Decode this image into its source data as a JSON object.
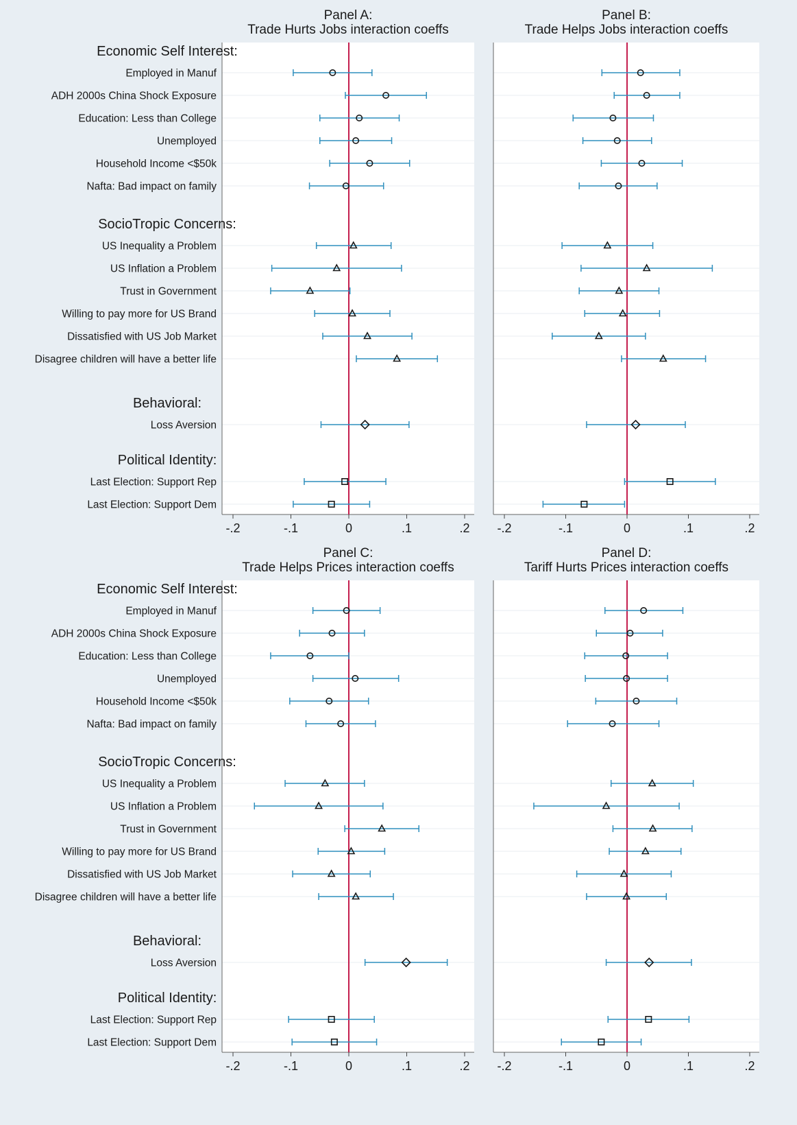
{
  "chart_data": [
    {
      "type": "scatter",
      "subtype": "coefficient-plot-with-confidence-intervals",
      "title_line1": "Panel A:",
      "title_line2": "Trade Hurts Jobs interaction coeffs",
      "xlim": [
        -0.2,
        0.2
      ],
      "xticks": [
        -0.2,
        -0.1,
        0,
        0.1,
        0.2
      ],
      "xtick_labels": [
        "-.2",
        "-.1",
        "0",
        ".1",
        ".2"
      ],
      "reference_line": 0,
      "grid": true,
      "points": [
        {
          "group": "Economic Self Interest:",
          "label": "Employed in Manuf",
          "coef": -0.028,
          "lo": -0.096,
          "hi": 0.04,
          "marker": "circle"
        },
        {
          "group": "Economic Self Interest:",
          "label": "ADH 2000s China Shock Exposure",
          "coef": 0.064,
          "lo": -0.006,
          "hi": 0.134,
          "marker": "circle"
        },
        {
          "group": "Economic Self Interest:",
          "label": "Education: Less than College",
          "coef": 0.018,
          "lo": -0.05,
          "hi": 0.087,
          "marker": "circle"
        },
        {
          "group": "Economic Self Interest:",
          "label": "Unemployed",
          "coef": 0.012,
          "lo": -0.05,
          "hi": 0.074,
          "marker": "circle"
        },
        {
          "group": "Economic Self Interest:",
          "label": "Household Income <$50k",
          "coef": 0.036,
          "lo": -0.033,
          "hi": 0.105,
          "marker": "circle"
        },
        {
          "group": "Economic Self Interest:",
          "label": "Nafta: Bad impact on family",
          "coef": -0.005,
          "lo": -0.068,
          "hi": 0.06,
          "marker": "circle"
        },
        {
          "group": "SocioTropic Concerns:",
          "label": "US Inequality a Problem",
          "coef": 0.008,
          "lo": -0.056,
          "hi": 0.073,
          "marker": "triangle"
        },
        {
          "group": "SocioTropic Concerns:",
          "label": "US Inflation a Problem",
          "coef": -0.021,
          "lo": -0.133,
          "hi": 0.091,
          "marker": "triangle"
        },
        {
          "group": "SocioTropic Concerns:",
          "label": "Trust in Government",
          "coef": -0.067,
          "lo": -0.135,
          "hi": 0.002,
          "marker": "triangle"
        },
        {
          "group": "SocioTropic Concerns:",
          "label": "Willing to pay more for US Brand",
          "coef": 0.006,
          "lo": -0.059,
          "hi": 0.071,
          "marker": "triangle"
        },
        {
          "group": "SocioTropic Concerns:",
          "label": "Dissatisfied with US Job Market",
          "coef": 0.032,
          "lo": -0.045,
          "hi": 0.109,
          "marker": "triangle"
        },
        {
          "group": "SocioTropic Concerns:",
          "label": "Disagree children will have a better life",
          "coef": 0.083,
          "lo": 0.013,
          "hi": 0.153,
          "marker": "triangle"
        },
        {
          "group": "Behavioral:",
          "label": "Loss Aversion",
          "coef": 0.028,
          "lo": -0.048,
          "hi": 0.104,
          "marker": "diamond"
        },
        {
          "group": "Political Identity:",
          "label": "Last Election: Support Rep",
          "coef": -0.007,
          "lo": -0.077,
          "hi": 0.064,
          "marker": "square"
        },
        {
          "group": "Political Identity:",
          "label": "Last Election: Support Dem",
          "coef": -0.03,
          "lo": -0.096,
          "hi": 0.036,
          "marker": "square"
        }
      ]
    },
    {
      "type": "scatter",
      "subtype": "coefficient-plot-with-confidence-intervals",
      "title_line1": "Panel B:",
      "title_line2": "Trade Helps Jobs interaction coeffs",
      "xlim": [
        -0.2,
        0.2
      ],
      "xticks": [
        -0.2,
        -0.1,
        0,
        0.1,
        0.2
      ],
      "xtick_labels": [
        "-.2",
        "-.1",
        "0",
        ".1",
        ".2"
      ],
      "reference_line": 0,
      "grid": true,
      "points": [
        {
          "group": "Economic Self Interest:",
          "label": "Employed in Manuf",
          "coef": 0.022,
          "lo": -0.041,
          "hi": 0.086,
          "marker": "circle"
        },
        {
          "group": "Economic Self Interest:",
          "label": "ADH 2000s China Shock Exposure",
          "coef": 0.032,
          "lo": -0.021,
          "hi": 0.086,
          "marker": "circle"
        },
        {
          "group": "Economic Self Interest:",
          "label": "Education: Less than College",
          "coef": -0.023,
          "lo": -0.088,
          "hi": 0.043,
          "marker": "circle"
        },
        {
          "group": "Economic Self Interest:",
          "label": "Unemployed",
          "coef": -0.016,
          "lo": -0.072,
          "hi": 0.04,
          "marker": "circle"
        },
        {
          "group": "Economic Self Interest:",
          "label": "Household Income <$50k",
          "coef": 0.024,
          "lo": -0.042,
          "hi": 0.09,
          "marker": "circle"
        },
        {
          "group": "Economic Self Interest:",
          "label": "Nafta: Bad impact on family",
          "coef": -0.014,
          "lo": -0.078,
          "hi": 0.049,
          "marker": "circle"
        },
        {
          "group": "SocioTropic Concerns:",
          "label": "US Inequality a Problem",
          "coef": -0.032,
          "lo": -0.106,
          "hi": 0.042,
          "marker": "triangle"
        },
        {
          "group": "SocioTropic Concerns:",
          "label": "US Inflation a Problem",
          "coef": 0.032,
          "lo": -0.075,
          "hi": 0.139,
          "marker": "triangle"
        },
        {
          "group": "SocioTropic Concerns:",
          "label": "Trust in Government",
          "coef": -0.013,
          "lo": -0.078,
          "hi": 0.052,
          "marker": "triangle"
        },
        {
          "group": "SocioTropic Concerns:",
          "label": "Willing to pay more for US Brand",
          "coef": -0.007,
          "lo": -0.069,
          "hi": 0.053,
          "marker": "triangle"
        },
        {
          "group": "SocioTropic Concerns:",
          "label": "Dissatisfied with US Job Market",
          "coef": -0.046,
          "lo": -0.122,
          "hi": 0.03,
          "marker": "triangle"
        },
        {
          "group": "SocioTropic Concerns:",
          "label": "Disagree children will have a better life",
          "coef": 0.059,
          "lo": -0.009,
          "hi": 0.128,
          "marker": "triangle"
        },
        {
          "group": "Behavioral:",
          "label": "Loss Aversion",
          "coef": 0.014,
          "lo": -0.066,
          "hi": 0.095,
          "marker": "diamond"
        },
        {
          "group": "Political Identity:",
          "label": "Last Election: Support Rep",
          "coef": 0.07,
          "lo": -0.004,
          "hi": 0.144,
          "marker": "square"
        },
        {
          "group": "Political Identity:",
          "label": "Last Election: Support Dem",
          "coef": -0.07,
          "lo": -0.137,
          "hi": -0.004,
          "marker": "square"
        }
      ]
    },
    {
      "type": "scatter",
      "subtype": "coefficient-plot-with-confidence-intervals",
      "title_line1": "Panel C:",
      "title_line2": "Trade Helps Prices interaction coeffs",
      "xlim": [
        -0.2,
        0.2
      ],
      "xticks": [
        -0.2,
        -0.1,
        0,
        0.1,
        0.2
      ],
      "xtick_labels": [
        "-.2",
        "-.1",
        "0",
        ".1",
        ".2"
      ],
      "reference_line": 0,
      "grid": true,
      "points": [
        {
          "group": "Economic Self Interest:",
          "label": "Employed in Manuf",
          "coef": -0.004,
          "lo": -0.062,
          "hi": 0.054,
          "marker": "circle"
        },
        {
          "group": "Economic Self Interest:",
          "label": "ADH 2000s China Shock Exposure",
          "coef": -0.029,
          "lo": -0.085,
          "hi": 0.027,
          "marker": "circle"
        },
        {
          "group": "Economic Self Interest:",
          "label": "Education: Less than College",
          "coef": -0.067,
          "lo": -0.135,
          "hi": 0.0,
          "marker": "circle"
        },
        {
          "group": "Economic Self Interest:",
          "label": "Unemployed",
          "coef": 0.011,
          "lo": -0.062,
          "hi": 0.086,
          "marker": "circle"
        },
        {
          "group": "Economic Self Interest:",
          "label": "Household Income <$50k",
          "coef": -0.034,
          "lo": -0.102,
          "hi": 0.034,
          "marker": "circle"
        },
        {
          "group": "Economic Self Interest:",
          "label": "Nafta: Bad impact on family",
          "coef": -0.014,
          "lo": -0.074,
          "hi": 0.046,
          "marker": "circle"
        },
        {
          "group": "SocioTropic Concerns:",
          "label": "US Inequality a Problem",
          "coef": -0.041,
          "lo": -0.11,
          "hi": 0.027,
          "marker": "triangle"
        },
        {
          "group": "SocioTropic Concerns:",
          "label": "US Inflation a Problem",
          "coef": -0.052,
          "lo": -0.163,
          "hi": 0.059,
          "marker": "triangle"
        },
        {
          "group": "SocioTropic Concerns:",
          "label": "Trust in Government",
          "coef": 0.057,
          "lo": -0.007,
          "hi": 0.121,
          "marker": "triangle"
        },
        {
          "group": "SocioTropic Concerns:",
          "label": "Willing to pay more for US Brand",
          "coef": 0.004,
          "lo": -0.053,
          "hi": 0.062,
          "marker": "triangle"
        },
        {
          "group": "SocioTropic Concerns:",
          "label": "Dissatisfied with US Job Market",
          "coef": -0.03,
          "lo": -0.097,
          "hi": 0.037,
          "marker": "triangle"
        },
        {
          "group": "SocioTropic Concerns:",
          "label": "Disagree children will have a better life",
          "coef": 0.012,
          "lo": -0.052,
          "hi": 0.077,
          "marker": "triangle"
        },
        {
          "group": "Behavioral:",
          "label": "Loss Aversion",
          "coef": 0.099,
          "lo": 0.028,
          "hi": 0.17,
          "marker": "diamond"
        },
        {
          "group": "Political Identity:",
          "label": "Last Election: Support Rep",
          "coef": -0.03,
          "lo": -0.104,
          "hi": 0.044,
          "marker": "square"
        },
        {
          "group": "Political Identity:",
          "label": "Last Election: Support Dem",
          "coef": -0.025,
          "lo": -0.098,
          "hi": 0.048,
          "marker": "square"
        }
      ]
    },
    {
      "type": "scatter",
      "subtype": "coefficient-plot-with-confidence-intervals",
      "title_line1": "Panel D:",
      "title_line2": "Tariff Hurts Prices interaction coeffs",
      "xlim": [
        -0.2,
        0.2
      ],
      "xticks": [
        -0.2,
        -0.1,
        0,
        0.1,
        0.2
      ],
      "xtick_labels": [
        "-.2",
        "-.1",
        "0",
        ".1",
        ".2"
      ],
      "reference_line": 0,
      "grid": true,
      "points": [
        {
          "group": "Economic Self Interest:",
          "label": "Employed in Manuf",
          "coef": 0.027,
          "lo": -0.036,
          "hi": 0.091,
          "marker": "circle"
        },
        {
          "group": "Economic Self Interest:",
          "label": "ADH 2000s China Shock Exposure",
          "coef": 0.005,
          "lo": -0.05,
          "hi": 0.058,
          "marker": "circle"
        },
        {
          "group": "Economic Self Interest:",
          "label": "Education: Less than College",
          "coef": -0.002,
          "lo": -0.069,
          "hi": 0.066,
          "marker": "circle"
        },
        {
          "group": "Economic Self Interest:",
          "label": "Unemployed",
          "coef": -0.001,
          "lo": -0.068,
          "hi": 0.066,
          "marker": "circle"
        },
        {
          "group": "Economic Self Interest:",
          "label": "Household Income <$50k",
          "coef": 0.015,
          "lo": -0.051,
          "hi": 0.081,
          "marker": "circle"
        },
        {
          "group": "Economic Self Interest:",
          "label": "Nafta: Bad impact on family",
          "coef": -0.024,
          "lo": -0.097,
          "hi": 0.052,
          "marker": "circle"
        },
        {
          "group": "SocioTropic Concerns:",
          "label": "US Inequality a Problem",
          "coef": 0.041,
          "lo": -0.026,
          "hi": 0.108,
          "marker": "triangle"
        },
        {
          "group": "SocioTropic Concerns:",
          "label": "US Inflation a Problem",
          "coef": -0.034,
          "lo": -0.152,
          "hi": 0.085,
          "marker": "triangle"
        },
        {
          "group": "SocioTropic Concerns:",
          "label": "Trust in Government",
          "coef": 0.042,
          "lo": -0.023,
          "hi": 0.106,
          "marker": "triangle"
        },
        {
          "group": "SocioTropic Concerns:",
          "label": "Willing to pay more for US Brand",
          "coef": 0.03,
          "lo": -0.029,
          "hi": 0.088,
          "marker": "triangle"
        },
        {
          "group": "SocioTropic Concerns:",
          "label": "Dissatisfied with US Job Market",
          "coef": -0.005,
          "lo": -0.082,
          "hi": 0.072,
          "marker": "triangle"
        },
        {
          "group": "SocioTropic Concerns:",
          "label": "Disagree children will have a better life",
          "coef": -0.001,
          "lo": -0.066,
          "hi": 0.064,
          "marker": "triangle"
        },
        {
          "group": "Behavioral:",
          "label": "Loss Aversion",
          "coef": 0.036,
          "lo": -0.034,
          "hi": 0.105,
          "marker": "diamond"
        },
        {
          "group": "Political Identity:",
          "label": "Last Election: Support Rep",
          "coef": 0.035,
          "lo": -0.031,
          "hi": 0.101,
          "marker": "square"
        },
        {
          "group": "Political Identity:",
          "label": "Last Election: Support Dem",
          "coef": -0.042,
          "lo": -0.107,
          "hi": 0.023,
          "marker": "square"
        }
      ]
    }
  ],
  "colors": {
    "figure_background": "#e8eef3",
    "plot_background": "#ffffff",
    "gridline": "#e9eef2",
    "ci_line": "#2f8fbd",
    "reference_line": "#c41e4e",
    "marker_stroke": "#1a1a1a",
    "text": "#1a1a1a"
  }
}
